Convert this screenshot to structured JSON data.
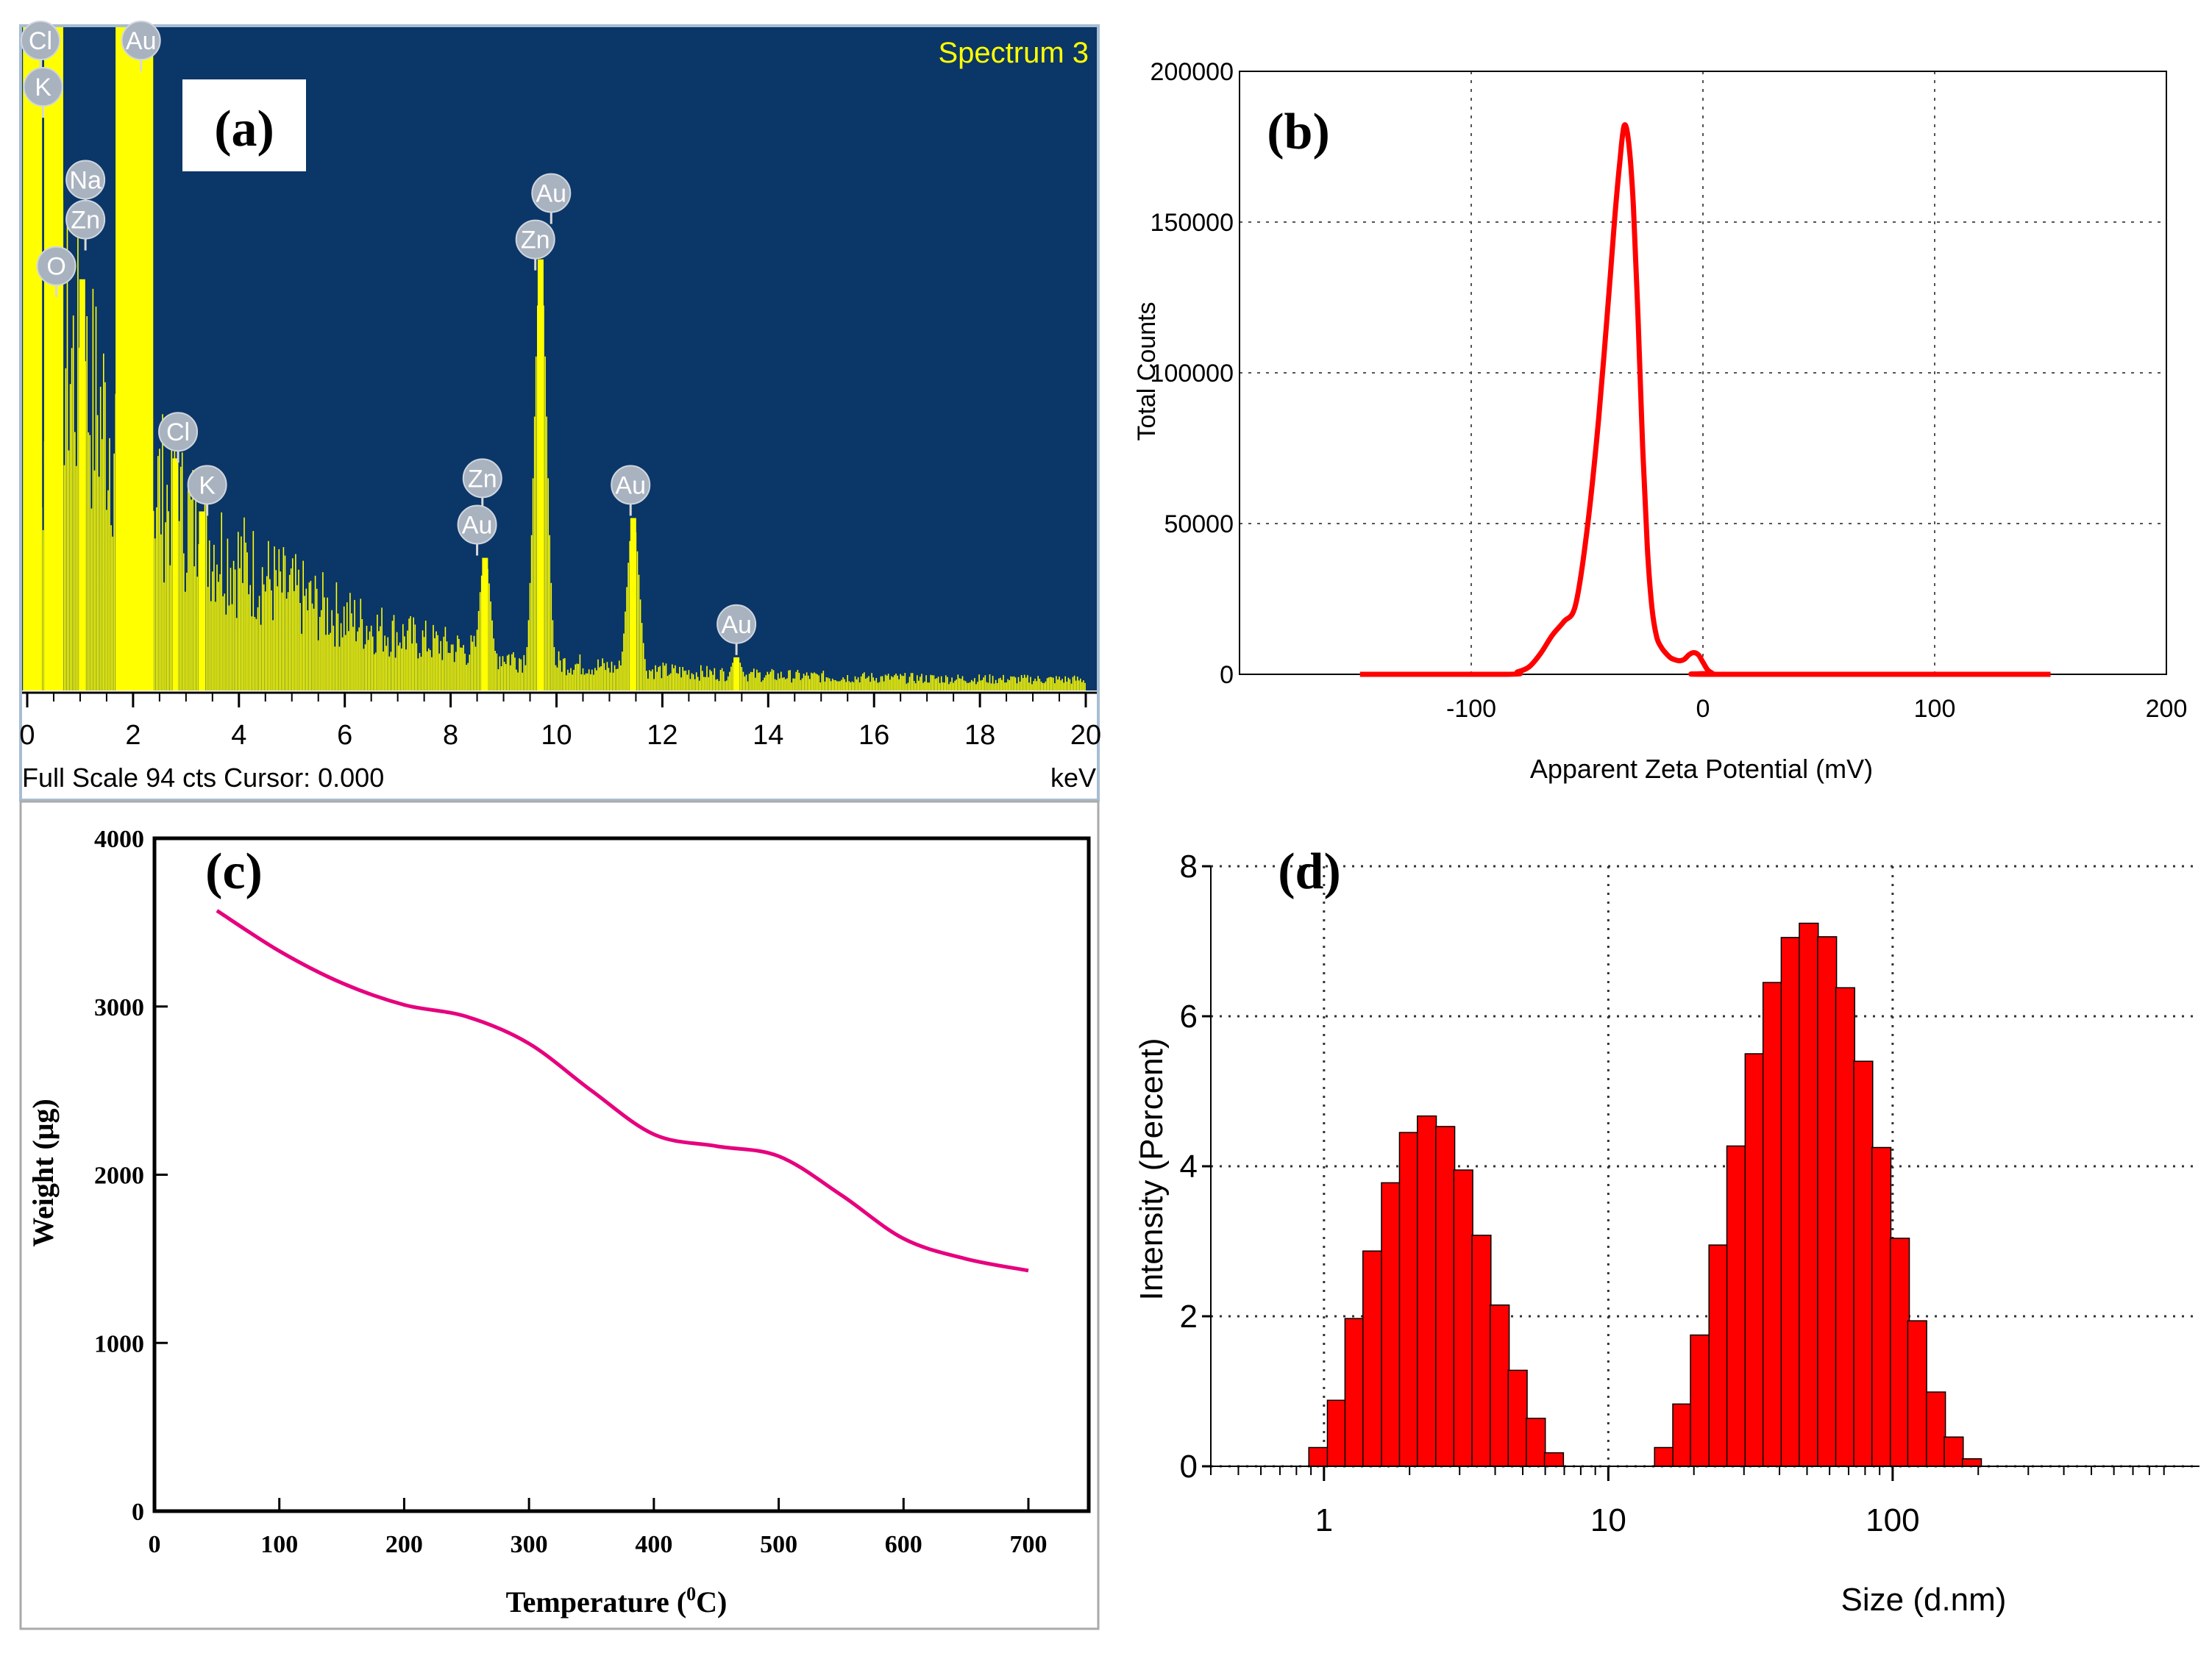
{
  "chart_data": [
    {
      "panel": "(a)",
      "type": "bar",
      "title": "Spectrum 3",
      "xlabel": "keV",
      "footer": "Full Scale 94 cts Cursor: 0.000",
      "xlim": [
        0,
        20
      ],
      "x_ticks": [
        "0",
        "2",
        "4",
        "6",
        "8",
        "10",
        "12",
        "14",
        "16",
        "18",
        "20"
      ],
      "peaks": [
        {
          "x": 0.1,
          "y": 100
        },
        {
          "x": 0.5,
          "y": 100
        },
        {
          "x": 1.04,
          "y": 62
        },
        {
          "x": 1.85,
          "y": 100
        },
        {
          "x": 2.2,
          "y": 100
        },
        {
          "x": 2.8,
          "y": 35
        },
        {
          "x": 3.3,
          "y": 27
        },
        {
          "x": 8.65,
          "y": 20
        },
        {
          "x": 9.7,
          "y": 65
        },
        {
          "x": 11.45,
          "y": 26
        },
        {
          "x": 13.4,
          "y": 5
        }
      ],
      "markers": [
        {
          "label": "Cl",
          "x": 0.25,
          "y": 98
        },
        {
          "label": "K",
          "x": 0.3,
          "y": 91
        },
        {
          "label": "Au",
          "x": 2.15,
          "y": 98
        },
        {
          "label": "Na",
          "x": 1.1,
          "y": 77
        },
        {
          "label": "Zn",
          "x": 1.1,
          "y": 71
        },
        {
          "label": "O",
          "x": 0.55,
          "y": 64
        },
        {
          "label": "Au",
          "x": 9.9,
          "y": 75
        },
        {
          "label": "Zn",
          "x": 9.6,
          "y": 68
        },
        {
          "label": "Cl",
          "x": 2.85,
          "y": 39
        },
        {
          "label": "K",
          "x": 3.4,
          "y": 31
        },
        {
          "label": "Zn",
          "x": 8.6,
          "y": 32
        },
        {
          "label": "Au",
          "x": 8.5,
          "y": 25
        },
        {
          "label": "Au",
          "x": 11.4,
          "y": 31
        },
        {
          "label": "Au",
          "x": 13.4,
          "y": 10
        }
      ],
      "bar_color": "#ffff00",
      "background": "#0b3668"
    },
    {
      "panel": "(b)",
      "type": "line",
      "xlabel": "Apparent Zeta Potential (mV)",
      "ylabel": "Total Counts",
      "xlim": [
        -200,
        200
      ],
      "ylim": [
        0,
        200000
      ],
      "x_ticks": [
        "-100",
        "0",
        "100",
        "200"
      ],
      "y_ticks": [
        "0",
        "50000",
        "100000",
        "150000",
        "200000"
      ],
      "x": [
        -148,
        -85,
        -80,
        -75,
        -70,
        -65,
        -60,
        -55,
        -50,
        -45,
        -40,
        -38,
        -36,
        -34,
        -32,
        -30,
        -28,
        -26,
        -24,
        -22,
        -20,
        -18,
        -16,
        -14,
        -12,
        -10,
        -8,
        -6,
        -4,
        -2,
        0,
        2,
        4,
        6,
        150
      ],
      "y": [
        0,
        0,
        800,
        2500,
        7000,
        13000,
        17500,
        23000,
        48000,
        85000,
        132000,
        152000,
        169000,
        182000,
        176000,
        155000,
        118000,
        75000,
        42000,
        22000,
        12500,
        9000,
        7000,
        5500,
        4800,
        4500,
        5000,
        6500,
        7200,
        6500,
        4000,
        1500,
        400,
        0,
        0
      ],
      "line_color": "#ff0000"
    },
    {
      "panel": "(c)",
      "type": "line",
      "xlabel": "Temperature (0C)",
      "xlabel_main": "Temperature (",
      "xlabel_sup": "0",
      "xlabel_end": "C)",
      "ylabel": "Weight (μg)",
      "xlim": [
        0,
        750
      ],
      "ylim": [
        0,
        4000
      ],
      "x_ticks": [
        "0",
        "100",
        "200",
        "300",
        "400",
        "500",
        "600",
        "700"
      ],
      "y_ticks": [
        "0",
        "1000",
        "2000",
        "3000",
        "4000"
      ],
      "x": [
        50,
        100,
        150,
        200,
        250,
        300,
        350,
        400,
        450,
        500,
        550,
        600,
        650,
        700
      ],
      "y": [
        3570,
        3330,
        3140,
        3010,
        2940,
        2780,
        2500,
        2240,
        2170,
        2110,
        1880,
        1620,
        1500,
        1430
      ],
      "line_color": "#e6007e"
    },
    {
      "panel": "(d)",
      "type": "bar",
      "xlabel": "Size (d.nm)",
      "ylabel": "Intensity (Percent)",
      "x_scale": "log",
      "xlim": [
        0.4,
        1200
      ],
      "ylim": [
        0,
        8
      ],
      "x_ticks": [
        {
          "v": 1,
          "label": "1"
        },
        {
          "v": 10,
          "label": "10"
        },
        {
          "v": 100,
          "label": "100"
        }
      ],
      "y_ticks": [
        "0",
        "2",
        "4",
        "6",
        "8"
      ],
      "bins": [
        {
          "size": 0.955,
          "value": 0.25
        },
        {
          "size": 1.11,
          "value": 0.88
        },
        {
          "size": 1.28,
          "value": 1.97
        },
        {
          "size": 1.48,
          "value": 2.87
        },
        {
          "size": 1.72,
          "value": 3.78
        },
        {
          "size": 1.99,
          "value": 4.45
        },
        {
          "size": 2.3,
          "value": 4.67
        },
        {
          "size": 2.67,
          "value": 4.53
        },
        {
          "size": 3.09,
          "value": 3.95
        },
        {
          "size": 3.58,
          "value": 3.08
        },
        {
          "size": 4.15,
          "value": 2.15
        },
        {
          "size": 4.8,
          "value": 1.28
        },
        {
          "size": 5.56,
          "value": 0.64
        },
        {
          "size": 6.44,
          "value": 0.18
        },
        {
          "size": 15.7,
          "value": 0.25
        },
        {
          "size": 18.2,
          "value": 0.83
        },
        {
          "size": 21.0,
          "value": 1.75
        },
        {
          "size": 24.4,
          "value": 2.95
        },
        {
          "size": 28.2,
          "value": 4.27
        },
        {
          "size": 32.7,
          "value": 5.5
        },
        {
          "size": 37.8,
          "value": 6.45
        },
        {
          "size": 43.8,
          "value": 7.05
        },
        {
          "size": 50.7,
          "value": 7.24
        },
        {
          "size": 58.8,
          "value": 7.06
        },
        {
          "size": 68.1,
          "value": 6.38
        },
        {
          "size": 78.8,
          "value": 5.4
        },
        {
          "size": 91.3,
          "value": 4.25
        },
        {
          "size": 106,
          "value": 3.04
        },
        {
          "size": 122,
          "value": 1.94
        },
        {
          "size": 142,
          "value": 0.99
        },
        {
          "size": 164,
          "value": 0.39
        },
        {
          "size": 190,
          "value": 0.1
        }
      ],
      "bar_color": "#ff0000"
    }
  ]
}
